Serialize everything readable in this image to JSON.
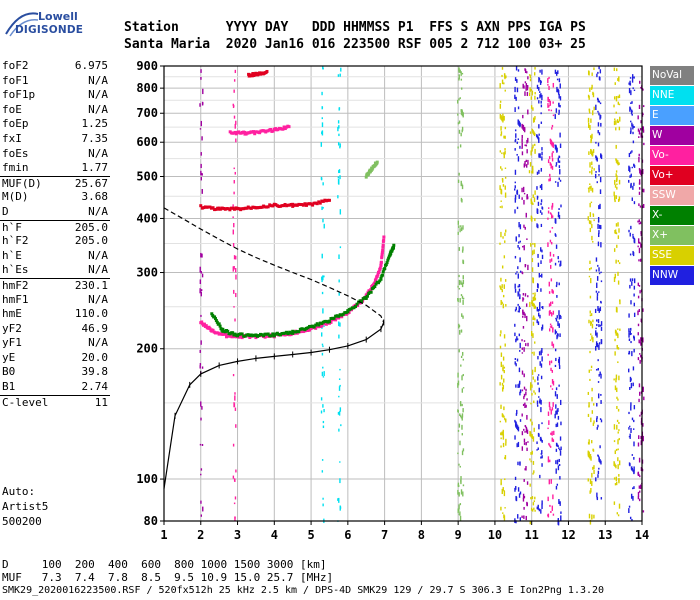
{
  "logo": {
    "line1": "Lowell",
    "line2": "DIGISONDE"
  },
  "header": {
    "labels": "Station      YYYY DAY   DDD HHMMSS P1  FFS S AXN PPS IGA PS",
    "values": "Santa Maria  2020 Jan16 016 223500 RSF 005 2 712 100 03+ 25"
  },
  "params": [
    {
      "name": "foF2",
      "value": "6.975"
    },
    {
      "name": "foF1",
      "value": "N/A"
    },
    {
      "name": "foF1p",
      "value": "N/A"
    },
    {
      "name": "foE",
      "value": "N/A"
    },
    {
      "name": "foEp",
      "value": "1.25"
    },
    {
      "name": "fxI",
      "value": "7.35"
    },
    {
      "name": "foEs",
      "value": "N/A"
    },
    {
      "name": "fmin",
      "value": "1.77"
    },
    {
      "name": "MUF(D)",
      "value": "25.67",
      "sep": true
    },
    {
      "name": "M(D)",
      "value": "3.68"
    },
    {
      "name": "D",
      "value": "N/A"
    },
    {
      "name": "h`F",
      "value": "205.0",
      "sep": true
    },
    {
      "name": "h`F2",
      "value": "205.0"
    },
    {
      "name": "h`E",
      "value": "N/A"
    },
    {
      "name": "h`Es",
      "value": "N/A"
    },
    {
      "name": "hmF2",
      "value": "230.1",
      "sep": true
    },
    {
      "name": "hmF1",
      "value": "N/A"
    },
    {
      "name": "hmE",
      "value": "110.0"
    },
    {
      "name": "yF2",
      "value": "46.9"
    },
    {
      "name": "yF1",
      "value": "N/A"
    },
    {
      "name": "yE",
      "value": "20.0"
    },
    {
      "name": "B0",
      "value": "39.8"
    },
    {
      "name": "B1",
      "value": "2.74"
    },
    {
      "name": "C-level",
      "value": "11",
      "sep": true
    }
  ],
  "auto": {
    "line1": "Auto:",
    "line2": "Artist5",
    "line3": "500200"
  },
  "legend": [
    {
      "label": "NoVal",
      "color": "#808080"
    },
    {
      "label": "NNE",
      "color": "#00e0f0"
    },
    {
      "label": "E",
      "color": "#4aa0ff"
    },
    {
      "label": "W",
      "color": "#a000a0"
    },
    {
      "label": "Vo-",
      "color": "#ff20a0"
    },
    {
      "label": "Vo+",
      "color": "#e00020"
    },
    {
      "label": "SSW",
      "color": "#f0a8a8"
    },
    {
      "label": "X-",
      "color": "#008000"
    },
    {
      "label": "X+",
      "color": "#80c060"
    },
    {
      "label": "SSE",
      "color": "#d8d000"
    },
    {
      "label": "NNW",
      "color": "#2020e0"
    }
  ],
  "bottom": {
    "line1": "D     100  200  400  600  800 1000 1500 3000 [km]",
    "line2": "MUF   7.3  7.4  7.8  8.5  9.5 10.9 15.0 25.7 [MHz]",
    "line3": "SMK29_2020016223500.RSF / 520fx512h 25 kHz 2.5 km / DPS-4D SMK29 129 / 29.7 S 306.3 E Ion2Png 1.3.20"
  },
  "chart_data": {
    "type": "scatter",
    "x": {
      "min": 1,
      "max": 14,
      "ticks": [
        1,
        2,
        3,
        4,
        5,
        6,
        7,
        8,
        9,
        10,
        11,
        12,
        13,
        14
      ]
    },
    "y": {
      "min": 80,
      "max": 900,
      "ticks": [
        80,
        100,
        200,
        300,
        400,
        500,
        600,
        700,
        800,
        900
      ]
    },
    "log_y": true,
    "grid": true,
    "traces": [
      {
        "name": "O-trace F2",
        "color": "#ff20a0",
        "points": [
          [
            2.0,
            230
          ],
          [
            2.3,
            220
          ],
          [
            2.7,
            214
          ],
          [
            3.0,
            213
          ],
          [
            3.5,
            213
          ],
          [
            4.0,
            214
          ],
          [
            4.5,
            217
          ],
          [
            5.0,
            222
          ],
          [
            5.5,
            230
          ],
          [
            6.0,
            242
          ],
          [
            6.4,
            258
          ],
          [
            6.7,
            280
          ],
          [
            6.9,
            310
          ],
          [
            6.98,
            360
          ]
        ]
      },
      {
        "name": "X-trace F2",
        "color": "#008000",
        "points": [
          [
            2.3,
            240
          ],
          [
            2.6,
            220
          ],
          [
            3.0,
            215
          ],
          [
            3.5,
            214
          ],
          [
            4.0,
            215
          ],
          [
            4.5,
            218
          ],
          [
            5.0,
            224
          ],
          [
            5.5,
            232
          ],
          [
            6.0,
            244
          ],
          [
            6.5,
            262
          ],
          [
            6.9,
            290
          ],
          [
            7.15,
            330
          ],
          [
            7.25,
            345
          ]
        ]
      },
      {
        "name": "Echo 2nd hop",
        "color": "#e00020",
        "points": [
          [
            2.0,
            425
          ],
          [
            2.5,
            420
          ],
          [
            3.0,
            420
          ],
          [
            3.5,
            425
          ],
          [
            4.0,
            428
          ],
          [
            4.5,
            428
          ],
          [
            5.0,
            430
          ],
          [
            5.5,
            440
          ]
        ]
      },
      {
        "name": "Echo 3rd hop",
        "color": "#ff20a0",
        "points": [
          [
            2.8,
            630
          ],
          [
            3.2,
            628
          ],
          [
            3.6,
            632
          ],
          [
            4.0,
            640
          ],
          [
            4.4,
            650
          ]
        ]
      },
      {
        "name": "Echo high",
        "color": "#e00020",
        "points": [
          [
            3.3,
            855
          ],
          [
            3.5,
            860
          ],
          [
            3.8,
            870
          ]
        ]
      },
      {
        "name": "Echo mid",
        "color": "#80c060",
        "points": [
          [
            6.5,
            500
          ],
          [
            6.65,
            520
          ],
          [
            6.8,
            540
          ]
        ]
      }
    ],
    "profile": {
      "points": [
        [
          1.0,
          423
        ],
        [
          1.5,
          400
        ],
        [
          2.0,
          378
        ],
        [
          2.5,
          358
        ],
        [
          3.0,
          340
        ],
        [
          3.5,
          325
        ],
        [
          4.0,
          312
        ],
        [
          4.5,
          300
        ],
        [
          5.0,
          289
        ],
        [
          5.5,
          277
        ],
        [
          6.0,
          265
        ],
        [
          6.5,
          252
        ],
        [
          6.9,
          238
        ],
        [
          6.975,
          230
        ]
      ]
    },
    "profile_low": {
      "points": [
        [
          1.0,
          95
        ],
        [
          1.3,
          140
        ],
        [
          1.7,
          165
        ],
        [
          2.0,
          175
        ],
        [
          2.5,
          183
        ],
        [
          3.0,
          187
        ],
        [
          3.5,
          190
        ],
        [
          4.0,
          192
        ],
        [
          4.5,
          194
        ],
        [
          5.0,
          196
        ],
        [
          5.5,
          199
        ],
        [
          6.0,
          203
        ],
        [
          6.5,
          210
        ],
        [
          6.9,
          222
        ],
        [
          6.975,
          230
        ]
      ]
    },
    "noise_bands": [
      {
        "x": 2.0,
        "color": "#a000a0"
      },
      {
        "x": 2.9,
        "color": "#ff20a0"
      },
      {
        "x": 5.3,
        "color": "#00e0f0"
      },
      {
        "x": 5.75,
        "color": "#00e0f0"
      },
      {
        "x": 9.05,
        "color": "#80c060"
      },
      {
        "x": 10.2,
        "color": "#d8d000"
      },
      {
        "x": 10.6,
        "color": "#2020e0"
      },
      {
        "x": 10.8,
        "color": "#a000a0"
      },
      {
        "x": 11.0,
        "color": "#d8d000"
      },
      {
        "x": 11.2,
        "color": "#2020e0"
      },
      {
        "x": 11.5,
        "color": "#ff20a0"
      },
      {
        "x": 11.7,
        "color": "#2020e0"
      },
      {
        "x": 12.6,
        "color": "#d8d000"
      },
      {
        "x": 12.8,
        "color": "#2020e0"
      },
      {
        "x": 13.3,
        "color": "#d8d000"
      },
      {
        "x": 13.7,
        "color": "#2020e0"
      },
      {
        "x": 13.95,
        "color": "#a000a0"
      }
    ]
  }
}
